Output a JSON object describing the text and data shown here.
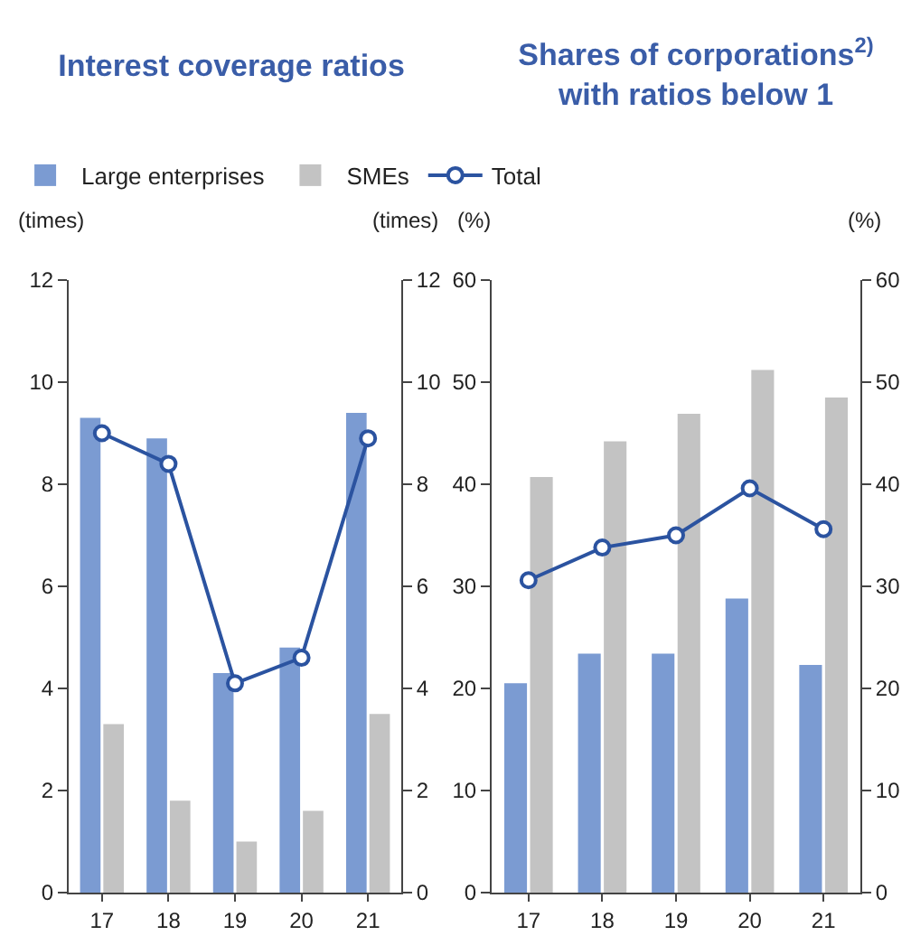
{
  "chart_data": [
    {
      "type": "bar",
      "title": "Interest coverage ratios",
      "ylabel": "(times)",
      "y2label": "(times)",
      "categories": [
        "17",
        "18",
        "19",
        "20",
        "21"
      ],
      "series": [
        {
          "name": "Large enterprises",
          "color": "#7b9bd2",
          "values": [
            9.3,
            8.9,
            4.3,
            4.8,
            9.4
          ]
        },
        {
          "name": "SMEs",
          "color": "#c3c3c3",
          "values": [
            3.3,
            1.8,
            1.0,
            1.6,
            3.5
          ]
        },
        {
          "name": "Total",
          "type": "line",
          "color": "#2b53a0",
          "values": [
            9.0,
            8.4,
            4.1,
            4.6,
            8.9
          ]
        }
      ],
      "ylim": [
        0,
        12
      ],
      "yticks": [
        0,
        2,
        4,
        6,
        8,
        10,
        12
      ],
      "y2lim": [
        0,
        12
      ],
      "y2ticks": [
        0,
        2,
        4,
        6,
        8,
        10,
        12
      ],
      "legend": "top",
      "marker": "circle",
      "grid": false
    },
    {
      "type": "bar",
      "title": "Shares of corporations$^{2)}$\nwith ratios below 1",
      "ylabel": "(%)",
      "y2label": "(%)",
      "categories": [
        "17",
        "18",
        "19",
        "20",
        "21"
      ],
      "series": [
        {
          "color": "#7b9bd2",
          "values": [
            20.5,
            23.4,
            23.4,
            28.8,
            22.3
          ]
        },
        {
          "color": "#c3c3c3",
          "values": [
            40.7,
            44.2,
            46.9,
            51.2,
            48.5
          ]
        },
        {
          "type": "line",
          "color": "#2b53a0",
          "values": [
            30.6,
            33.8,
            35.0,
            39.6,
            35.6
          ]
        }
      ],
      "ylim": [
        0,
        60
      ],
      "yticks": [
        0,
        10,
        20,
        30,
        40,
        50,
        60
      ],
      "y2lim": [
        0,
        60
      ],
      "y2ticks": [
        0,
        10,
        20,
        30,
        40,
        50,
        60
      ],
      "marker": "circle",
      "grid": false
    }
  ]
}
